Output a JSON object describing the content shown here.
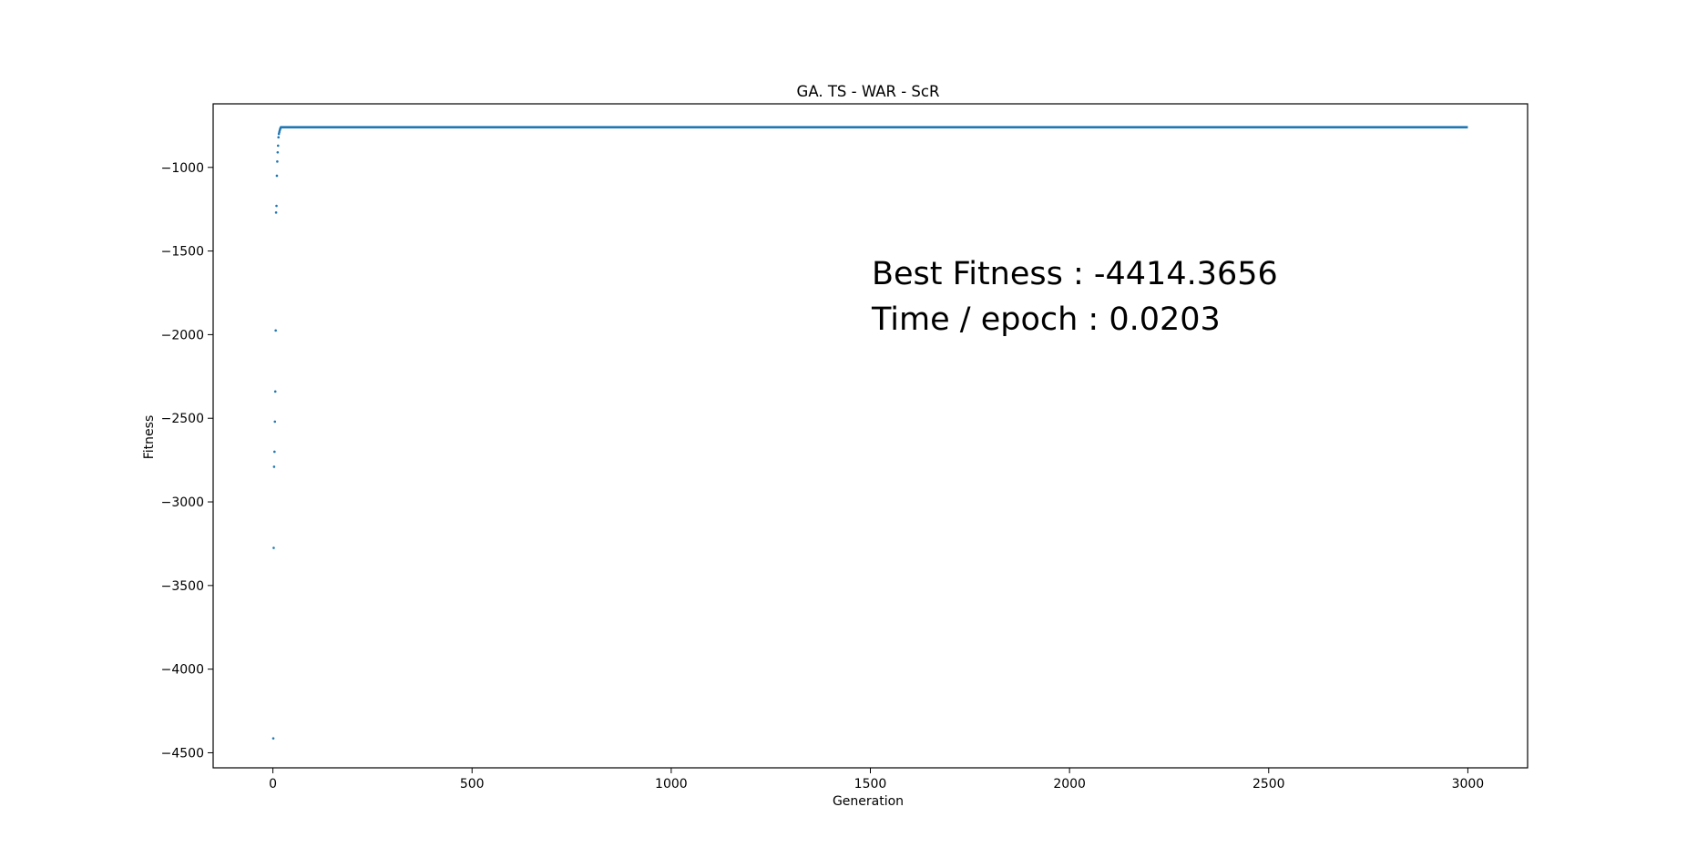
{
  "chart_data": {
    "type": "scatter",
    "title": "GA. TS - WAR - ScR",
    "xlabel": "Generation",
    "ylabel": "Fitness",
    "xlim": [
      -150,
      3150
    ],
    "ylim": [
      -4590,
      -620
    ],
    "xticks": [
      0,
      500,
      1000,
      1500,
      2000,
      2500,
      3000
    ],
    "yticks": [
      -1000,
      -1500,
      -2000,
      -2500,
      -3000,
      -3500,
      -4000,
      -4500
    ],
    "xtick_labels": [
      "0",
      "500",
      "1000",
      "1500",
      "2000",
      "2500",
      "3000"
    ],
    "ytick_labels": [
      "−1000",
      "−1500",
      "−2000",
      "−2500",
      "−3000",
      "−3500",
      "−4000",
      "−4500"
    ],
    "grid": false,
    "series_color": "#1f77b4",
    "early_points": {
      "x": [
        1,
        2,
        3,
        4,
        5,
        6,
        7,
        8,
        9,
        10,
        11,
        12,
        13,
        14,
        15,
        16,
        17,
        18,
        19,
        20
      ],
      "y": [
        -4414,
        -3275,
        -2790,
        -2700,
        -2520,
        -2340,
        -1975,
        -1270,
        -1230,
        -1050,
        -965,
        -910,
        -870,
        -820,
        -800,
        -790,
        -780,
        -772,
        -765,
        -760
      ]
    },
    "plateau": {
      "x_start": 20,
      "x_end": 3000,
      "y": -760
    },
    "annotations": [
      "Best Fitness : -4414.3656",
      "Time / epoch : 0.0203"
    ]
  }
}
